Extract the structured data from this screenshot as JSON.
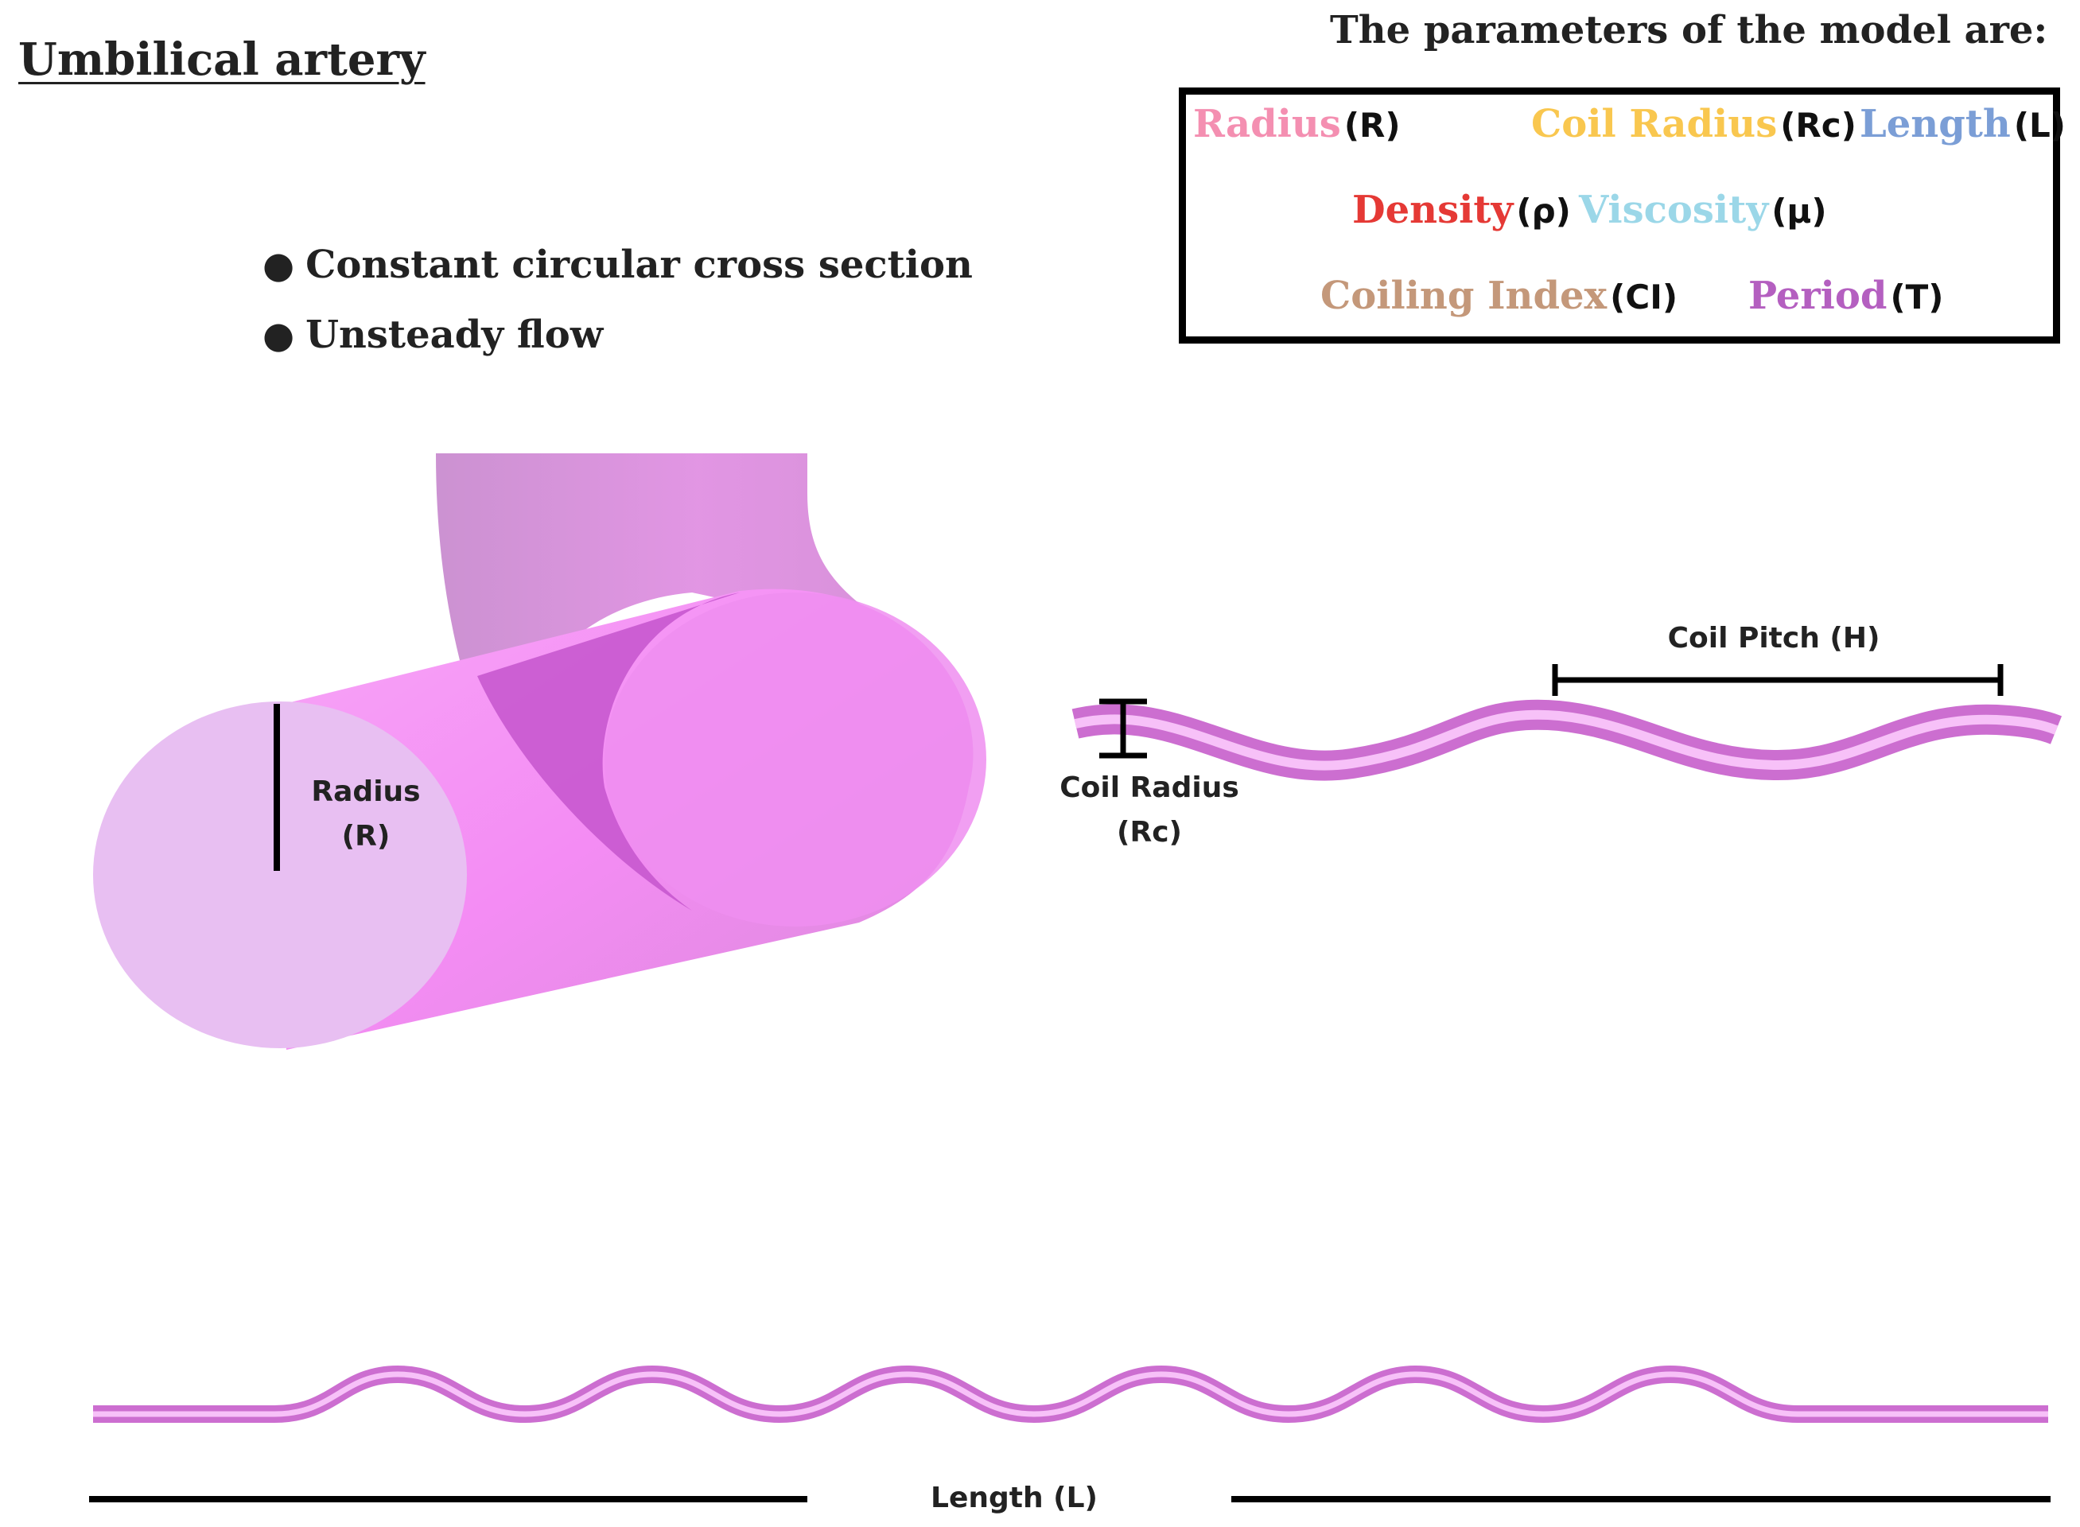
{
  "title": "Umbilical artery",
  "panel": {
    "heading": "The parameters of the model are:",
    "params": [
      {
        "name": "Radius",
        "symbol": "(R)",
        "color": "#f48fb1"
      },
      {
        "name": "Coil Radius",
        "symbol": "(Rc)",
        "color": "#f9c74f"
      },
      {
        "name": "Length",
        "symbol": "(L)",
        "color": "#7b9ed6"
      },
      {
        "name": "Density",
        "symbol": "(ρ)",
        "color": "#e53935"
      },
      {
        "name": "Viscosity",
        "symbol": "(μ)",
        "color": "#9bd7e8"
      },
      {
        "name": "Coiling Index",
        "symbol": "(CI)",
        "color": "#c4987a"
      },
      {
        "name": "Period",
        "symbol": "(T)",
        "color": "#b45fc0"
      }
    ]
  },
  "bullets": [
    "Constant circular cross section",
    "Unsteady flow"
  ],
  "labels": {
    "radius": "Radius",
    "radius_symbol": "(R)",
    "coil_radius": "Coil Radius",
    "coil_radius_symbol": "(Rc)",
    "coil_pitch": "Coil Pitch (H)",
    "length": "Length (L)"
  },
  "colors": {
    "tube_dark": "#cf84cf",
    "tube_mid": "#f48cf4",
    "tube_light": "#e8bff2",
    "inner_dark": "#c455cc",
    "annotation": "#000000"
  }
}
